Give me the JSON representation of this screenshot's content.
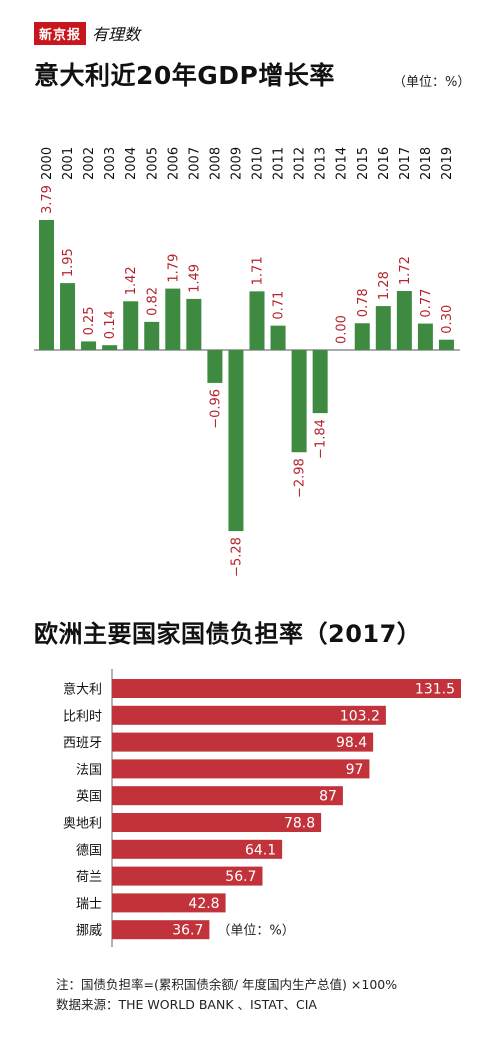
{
  "logo": {
    "text": "新京报",
    "subtext": "有理数"
  },
  "chart1": {
    "title": "意大利近20年GDP增长率",
    "unit": "（单位：%）"
  },
  "chart2": {
    "title": "欧洲主要国家国债负担率（2017）",
    "unit": "（单位：%）"
  },
  "footnotes": {
    "note": "注：国债负担率=(累积国债余额/ 年度国内生产总值) ×100%",
    "source": "数据来源：THE WORLD BANK 、ISTAT、CIA"
  },
  "colors": {
    "bar_green": "#3d8a40",
    "bar_red": "#c1323a",
    "label_red": "#b5242d"
  },
  "chart_data": [
    {
      "type": "bar",
      "title": "意大利近20年GDP增长率",
      "unit": "%",
      "categories": [
        "2000",
        "2001",
        "2002",
        "2003",
        "2004",
        "2005",
        "2006",
        "2007",
        "2008",
        "2009",
        "2010",
        "2011",
        "2012",
        "2013",
        "2014",
        "2015",
        "2016",
        "2017",
        "2018",
        "2019"
      ],
      "values": [
        3.79,
        1.95,
        0.25,
        0.14,
        1.42,
        0.82,
        1.79,
        1.49,
        -0.96,
        -5.28,
        1.71,
        0.71,
        -2.98,
        -1.84,
        0.0,
        0.78,
        1.28,
        1.72,
        0.77,
        0.3
      ],
      "value_labels": [
        "3.79",
        "1.95",
        "0.25",
        "0.14",
        "1.42",
        "0.82",
        "1.79",
        "1.49",
        "−0.96",
        "−5.28",
        "1.71",
        "0.71",
        "−2.98",
        "−1.84",
        "0.00",
        "0.78",
        "1.28",
        "1.72",
        "0.77",
        "0.30"
      ],
      "grid": false
    },
    {
      "type": "bar",
      "orientation": "horizontal",
      "title": "欧洲主要国家国债负担率（2017）",
      "unit": "%",
      "categories": [
        "意大利",
        "比利时",
        "西班牙",
        "法国",
        "英国",
        "奥地利",
        "德国",
        "荷兰",
        "瑞士",
        "挪威"
      ],
      "values": [
        131.5,
        103.2,
        98.4,
        97,
        87,
        78.8,
        64.1,
        56.7,
        42.8,
        36.7
      ],
      "value_labels": [
        "131.5",
        "103.2",
        "98.4",
        "97",
        "87",
        "78.8",
        "64.1",
        "56.7",
        "42.8",
        "36.7"
      ],
      "grid": false
    }
  ]
}
